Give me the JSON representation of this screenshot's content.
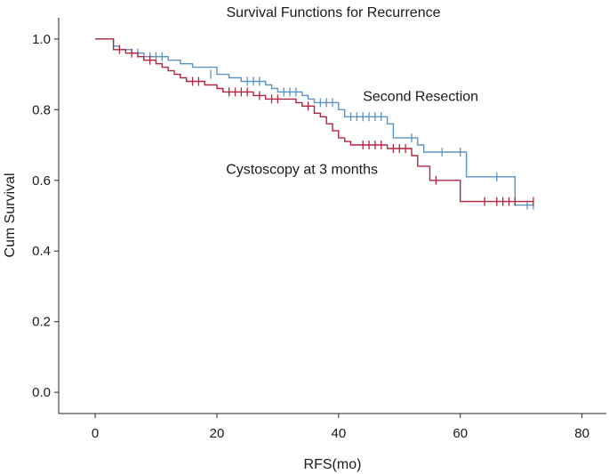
{
  "chart_data": {
    "type": "line",
    "title": "Survival Functions for Recurrence",
    "xlabel": "RFS(mo)",
    "ylabel": "Cum Survival",
    "xlim": [
      -6,
      84
    ],
    "ylim": [
      -0.06,
      1.06
    ],
    "xticks": [
      0,
      20,
      40,
      60,
      80
    ],
    "yticks": [
      0.0,
      0.2,
      0.4,
      0.6,
      0.8,
      1.0
    ],
    "xtick_labels": [
      "0",
      "20",
      "40",
      "60",
      "80"
    ],
    "ytick_labels": [
      "0.0",
      "0.2",
      "0.4",
      "0.6",
      "0.8",
      "1.0"
    ],
    "grid": false,
    "series": [
      {
        "name": "Second Resection",
        "color": "#5b93c4",
        "step": [
          [
            0,
            1.0
          ],
          [
            3,
            0.98
          ],
          [
            4,
            0.97
          ],
          [
            6,
            0.96
          ],
          [
            8,
            0.95
          ],
          [
            12,
            0.94
          ],
          [
            14,
            0.93
          ],
          [
            16,
            0.92
          ],
          [
            20,
            0.9
          ],
          [
            22,
            0.89
          ],
          [
            24,
            0.88
          ],
          [
            28,
            0.87
          ],
          [
            29,
            0.86
          ],
          [
            30,
            0.85
          ],
          [
            34,
            0.84
          ],
          [
            35,
            0.83
          ],
          [
            36,
            0.82
          ],
          [
            40,
            0.8
          ],
          [
            41,
            0.78
          ],
          [
            48,
            0.76
          ],
          [
            49,
            0.72
          ],
          [
            53,
            0.7
          ],
          [
            54,
            0.68
          ],
          [
            61,
            0.61
          ],
          [
            69,
            0.53
          ],
          [
            72,
            0.53
          ]
        ],
        "censored": [
          [
            7,
            0.96
          ],
          [
            9,
            0.95
          ],
          [
            10,
            0.95
          ],
          [
            11,
            0.95
          ],
          [
            19,
            0.9
          ],
          [
            25,
            0.88
          ],
          [
            26,
            0.88
          ],
          [
            27,
            0.88
          ],
          [
            31,
            0.85
          ],
          [
            32,
            0.85
          ],
          [
            33,
            0.85
          ],
          [
            37,
            0.82
          ],
          [
            38,
            0.82
          ],
          [
            39,
            0.82
          ],
          [
            42,
            0.78
          ],
          [
            43,
            0.78
          ],
          [
            44,
            0.78
          ],
          [
            45,
            0.78
          ],
          [
            46,
            0.78
          ],
          [
            47,
            0.78
          ],
          [
            52,
            0.72
          ],
          [
            57,
            0.68
          ],
          [
            60,
            0.68
          ],
          [
            66,
            0.61
          ],
          [
            71,
            0.53
          ],
          [
            72,
            0.53
          ]
        ]
      },
      {
        "name": "Cystoscopy at 3 months",
        "color": "#b3253f",
        "step": [
          [
            0,
            1.0
          ],
          [
            3,
            0.97
          ],
          [
            5,
            0.96
          ],
          [
            7,
            0.95
          ],
          [
            8,
            0.94
          ],
          [
            10,
            0.93
          ],
          [
            11,
            0.92
          ],
          [
            12,
            0.91
          ],
          [
            13,
            0.9
          ],
          [
            14,
            0.89
          ],
          [
            15,
            0.88
          ],
          [
            18,
            0.87
          ],
          [
            20,
            0.86
          ],
          [
            21,
            0.85
          ],
          [
            26,
            0.84
          ],
          [
            28,
            0.83
          ],
          [
            33,
            0.82
          ],
          [
            34,
            0.81
          ],
          [
            36,
            0.79
          ],
          [
            37,
            0.78
          ],
          [
            38,
            0.76
          ],
          [
            39,
            0.74
          ],
          [
            40,
            0.72
          ],
          [
            41,
            0.71
          ],
          [
            42,
            0.7
          ],
          [
            48,
            0.69
          ],
          [
            52,
            0.67
          ],
          [
            53,
            0.64
          ],
          [
            55,
            0.6
          ],
          [
            60,
            0.54
          ],
          [
            72,
            0.54
          ]
        ],
        "censored": [
          [
            4,
            0.97
          ],
          [
            6,
            0.96
          ],
          [
            9,
            0.94
          ],
          [
            16,
            0.88
          ],
          [
            17,
            0.88
          ],
          [
            22,
            0.85
          ],
          [
            23,
            0.85
          ],
          [
            24,
            0.85
          ],
          [
            25,
            0.85
          ],
          [
            27,
            0.84
          ],
          [
            29,
            0.83
          ],
          [
            30,
            0.83
          ],
          [
            35,
            0.81
          ],
          [
            44,
            0.7
          ],
          [
            45,
            0.7
          ],
          [
            46,
            0.7
          ],
          [
            47,
            0.7
          ],
          [
            49,
            0.69
          ],
          [
            50,
            0.69
          ],
          [
            51,
            0.69
          ],
          [
            56,
            0.6
          ],
          [
            64,
            0.54
          ],
          [
            66,
            0.54
          ],
          [
            67,
            0.54
          ],
          [
            68,
            0.54
          ],
          [
            69,
            0.54
          ],
          [
            72,
            0.54
          ]
        ]
      }
    ],
    "annotations": [
      {
        "text": "Second Resection",
        "x": 44,
        "y": 0.825
      },
      {
        "text": "Cystoscopy at 3 months",
        "x": 21.5,
        "y": 0.618
      }
    ]
  }
}
